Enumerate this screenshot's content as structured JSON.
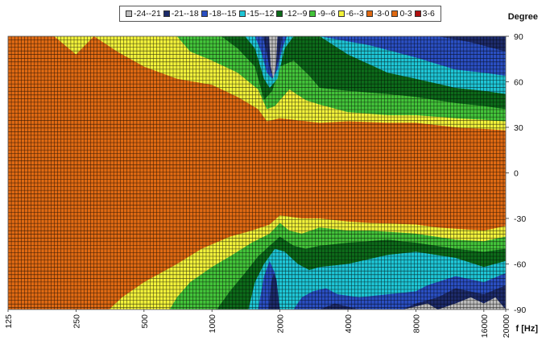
{
  "chart_data": {
    "type": "heatmap",
    "title": "",
    "xlabel": "f [Hz]",
    "ylabel": "Degree",
    "x_scale": "log",
    "xlim": [
      125,
      20000
    ],
    "ylim": [
      -90,
      90
    ],
    "x_ticks": [
      "125",
      "250",
      "500",
      "1000",
      "2000",
      "4000",
      "8000",
      "16000",
      "20000"
    ],
    "x_tick_values": [
      125,
      250,
      500,
      1000,
      2000,
      4000,
      8000,
      16000,
      20000
    ],
    "y_ticks": [
      "90",
      "60",
      "30",
      "0",
      "-30",
      "-60",
      "-90"
    ],
    "y_tick_values": [
      90,
      60,
      30,
      0,
      -30,
      -60,
      -90
    ],
    "grid": true,
    "legend_position": "top-center",
    "legend": [
      {
        "label": "-24--21",
        "color": "#bdbdbd"
      },
      {
        "label": "-21--18",
        "color": "#1d2b6b"
      },
      {
        "label": "-18--15",
        "color": "#2a4fc2"
      },
      {
        "label": "-15--12",
        "color": "#1ec6d6"
      },
      {
        "label": "-12--9",
        "color": "#0d6b1a"
      },
      {
        "label": "-9--6",
        "color": "#43c43a"
      },
      {
        "label": "-6--3",
        "color": "#f2f23a"
      },
      {
        "label": "-3-0",
        "color": "#e06a13"
      },
      {
        "label": "0-3",
        "color": "#e06a13"
      },
      {
        "label": "3-6",
        "color": "#b01010"
      }
    ],
    "contours": [
      {
        "band": "-6--3",
        "upper": [
          [
            125,
            90
          ],
          [
            200,
            90
          ],
          [
            250,
            78
          ],
          [
            300,
            90
          ],
          [
            380,
            80
          ],
          [
            500,
            70
          ],
          [
            700,
            62
          ],
          [
            1000,
            58
          ],
          [
            1300,
            50
          ],
          [
            1600,
            42
          ],
          [
            1750,
            34
          ],
          [
            2000,
            36
          ],
          [
            3000,
            33
          ],
          [
            4000,
            34
          ],
          [
            6000,
            33
          ],
          [
            8000,
            33
          ],
          [
            12000,
            30
          ],
          [
            16000,
            29
          ],
          [
            20000,
            28
          ]
        ],
        "lower": [
          [
            20000,
            -35
          ],
          [
            16000,
            -38
          ],
          [
            10000,
            -36
          ],
          [
            8000,
            -34
          ],
          [
            5000,
            -33
          ],
          [
            4000,
            -32
          ],
          [
            3000,
            -30
          ],
          [
            2500,
            -30
          ],
          [
            2000,
            -28
          ],
          [
            1800,
            -34
          ],
          [
            1500,
            -38
          ],
          [
            1200,
            -42
          ],
          [
            900,
            -50
          ],
          [
            700,
            -60
          ],
          [
            500,
            -72
          ],
          [
            400,
            -82
          ],
          [
            350,
            -90
          ],
          [
            125,
            -90
          ]
        ]
      },
      {
        "band": "-9--6",
        "upper": [
          [
            125,
            90
          ],
          [
            700,
            90
          ],
          [
            800,
            80
          ],
          [
            1000,
            74
          ],
          [
            1300,
            66
          ],
          [
            1600,
            55
          ],
          [
            1750,
            42
          ],
          [
            1900,
            44
          ],
          [
            2200,
            55
          ],
          [
            2600,
            48
          ],
          [
            3000,
            45
          ],
          [
            4000,
            40
          ],
          [
            6000,
            38
          ],
          [
            8000,
            38
          ],
          [
            12000,
            36
          ],
          [
            16000,
            35
          ],
          [
            20000,
            34
          ]
        ],
        "lower": [
          [
            20000,
            -42
          ],
          [
            16000,
            -45
          ],
          [
            12000,
            -44
          ],
          [
            8000,
            -40
          ],
          [
            5000,
            -38
          ],
          [
            4000,
            -38
          ],
          [
            3000,
            -36
          ],
          [
            2500,
            -40
          ],
          [
            2200,
            -38
          ],
          [
            2000,
            -33
          ],
          [
            1800,
            -40
          ],
          [
            1500,
            -46
          ],
          [
            1200,
            -55
          ],
          [
            1000,
            -62
          ],
          [
            800,
            -72
          ],
          [
            700,
            -82
          ],
          [
            650,
            -90
          ],
          [
            125,
            -90
          ]
        ]
      },
      {
        "band": "-12--9",
        "upper": [
          [
            125,
            90
          ],
          [
            1100,
            90
          ],
          [
            1300,
            82
          ],
          [
            1550,
            70
          ],
          [
            1700,
            48
          ],
          [
            1850,
            54
          ],
          [
            2000,
            70
          ],
          [
            2300,
            74
          ],
          [
            2700,
            64
          ],
          [
            3000,
            56
          ],
          [
            4000,
            54
          ],
          [
            6000,
            52
          ],
          [
            8000,
            50
          ],
          [
            12000,
            46
          ],
          [
            16000,
            44
          ],
          [
            20000,
            42
          ]
        ],
        "lower": [
          [
            20000,
            -50
          ],
          [
            16000,
            -52
          ],
          [
            12000,
            -50
          ],
          [
            8000,
            -46
          ],
          [
            6000,
            -44
          ],
          [
            4000,
            -46
          ],
          [
            3000,
            -48
          ],
          [
            2600,
            -50
          ],
          [
            2300,
            -48
          ],
          [
            2000,
            -42
          ],
          [
            1800,
            -48
          ],
          [
            1600,
            -55
          ],
          [
            1400,
            -66
          ],
          [
            1200,
            -78
          ],
          [
            1050,
            -90
          ],
          [
            125,
            -90
          ]
        ]
      },
      {
        "band": "-15--12",
        "upper": [
          [
            125,
            90
          ],
          [
            1400,
            90
          ],
          [
            1550,
            82
          ],
          [
            1700,
            62
          ],
          [
            1800,
            56
          ],
          [
            1950,
            62
          ],
          [
            2100,
            82
          ],
          [
            2300,
            90
          ],
          [
            3000,
            90
          ],
          [
            4000,
            78
          ],
          [
            6000,
            66
          ],
          [
            8000,
            62
          ],
          [
            12000,
            56
          ],
          [
            16000,
            54
          ],
          [
            20000,
            52
          ]
        ],
        "lower": [
          [
            20000,
            -58
          ],
          [
            16000,
            -62
          ],
          [
            12000,
            -56
          ],
          [
            8000,
            -52
          ],
          [
            6000,
            -54
          ],
          [
            4000,
            -60
          ],
          [
            3000,
            -62
          ],
          [
            2700,
            -64
          ],
          [
            2400,
            -60
          ],
          [
            2100,
            -52
          ],
          [
            1900,
            -50
          ],
          [
            1700,
            -60
          ],
          [
            1550,
            -72
          ],
          [
            1450,
            -90
          ],
          [
            125,
            -90
          ]
        ]
      },
      {
        "band": "-18--15",
        "upper": [
          [
            125,
            90
          ],
          [
            1550,
            90
          ],
          [
            1650,
            80
          ],
          [
            1750,
            66
          ],
          [
            1850,
            62
          ],
          [
            1950,
            68
          ],
          [
            2050,
            82
          ],
          [
            2150,
            90
          ],
          [
            3000,
            90
          ],
          [
            5000,
            84
          ],
          [
            8000,
            76
          ],
          [
            12000,
            68
          ],
          [
            16000,
            66
          ],
          [
            20000,
            64
          ]
        ],
        "lower": [
          [
            20000,
            -66
          ],
          [
            16000,
            -72
          ],
          [
            12000,
            -68
          ],
          [
            9000,
            -74
          ],
          [
            8000,
            -78
          ],
          [
            6000,
            -80
          ],
          [
            4500,
            -82
          ],
          [
            3600,
            -80
          ],
          [
            3200,
            -76
          ],
          [
            2800,
            -78
          ],
          [
            2500,
            -82
          ],
          [
            2300,
            -90
          ],
          [
            2000,
            -90
          ],
          [
            1900,
            -66
          ],
          [
            1800,
            -58
          ],
          [
            1700,
            -68
          ],
          [
            1600,
            -90
          ],
          [
            125,
            -90
          ]
        ]
      },
      {
        "band": "-21--18",
        "upper": [
          [
            125,
            90
          ],
          [
            1680,
            90
          ],
          [
            1750,
            78
          ],
          [
            1820,
            66
          ],
          [
            1900,
            66
          ],
          [
            1980,
            76
          ],
          [
            2050,
            90
          ],
          [
            10000,
            90
          ],
          [
            14000,
            86
          ],
          [
            20000,
            80
          ]
        ],
        "lower": [
          [
            20000,
            -74
          ],
          [
            16000,
            -80
          ],
          [
            12000,
            -76
          ],
          [
            10000,
            -82
          ],
          [
            8000,
            -86
          ],
          [
            7000,
            -90
          ],
          [
            6000,
            -90
          ],
          [
            5000,
            -90
          ],
          [
            4500,
            -90
          ],
          [
            3500,
            -86
          ],
          [
            3000,
            -90
          ],
          [
            2600,
            -90
          ],
          [
            2400,
            -90
          ],
          [
            2000,
            -90
          ],
          [
            1930,
            -70
          ],
          [
            1880,
            -66
          ],
          [
            1830,
            -72
          ],
          [
            1780,
            -90
          ],
          [
            125,
            -90
          ]
        ]
      },
      {
        "band": "-24--21",
        "upper": [
          [
            125,
            90
          ],
          [
            1790,
            90
          ],
          [
            1820,
            70
          ],
          [
            1870,
            62
          ],
          [
            1920,
            70
          ],
          [
            1950,
            90
          ],
          [
            16000,
            90
          ],
          [
            20000,
            90
          ]
        ],
        "lower": [
          [
            20000,
            -90
          ],
          [
            18000,
            -82
          ],
          [
            16000,
            -86
          ],
          [
            14000,
            -82
          ],
          [
            12000,
            -86
          ],
          [
            10000,
            -90
          ],
          [
            9000,
            -86
          ],
          [
            8000,
            -88
          ],
          [
            7000,
            -90
          ],
          [
            125,
            -90
          ]
        ]
      }
    ]
  }
}
